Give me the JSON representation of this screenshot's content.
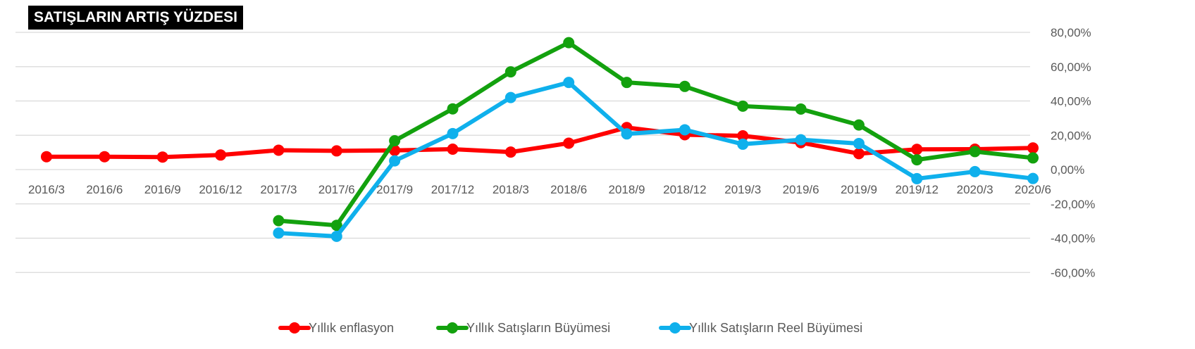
{
  "chart_data": {
    "type": "line",
    "title": "SATIŞLARIN ARTIŞ YÜZDESI",
    "categories": [
      "2016/3",
      "2016/6",
      "2016/9",
      "2016/12",
      "2017/3",
      "2017/6",
      "2017/9",
      "2017/12",
      "2018/3",
      "2018/6",
      "2018/9",
      "2018/12",
      "2019/3",
      "2019/6",
      "2019/9",
      "2019/12",
      "2020/3",
      "2020/6"
    ],
    "series": [
      {
        "name": "Yıllık enflasyon",
        "color": "#ff0000",
        "values": [
          7.5,
          7.5,
          7.3,
          8.5,
          11.3,
          10.9,
          11.2,
          11.9,
          10.2,
          15.4,
          24.5,
          20.3,
          19.7,
          15.7,
          9.3,
          11.8,
          11.9,
          12.6
        ]
      },
      {
        "name": "Yıllık Satışların Büyümesi",
        "color": "#13a10e",
        "values": [
          null,
          null,
          null,
          null,
          -29.8,
          -32.5,
          16.8,
          35.4,
          57.0,
          74.0,
          50.8,
          48.5,
          37.0,
          35.3,
          26.0,
          5.7,
          10.5,
          6.8
        ]
      },
      {
        "name": "Yıllık Satışların Reel Büyümesi",
        "color": "#0fb0ec",
        "values": [
          null,
          null,
          null,
          null,
          -37.0,
          -38.9,
          5.1,
          21.0,
          42.0,
          50.8,
          20.8,
          23.2,
          14.8,
          17.4,
          15.2,
          -5.3,
          -1.2,
          -5.2
        ]
      }
    ],
    "yticks": [
      "80,00%",
      "60,00%",
      "40,00%",
      "20,00%",
      "0,00%",
      "-20,00%",
      "-40,00%",
      "-60,00%"
    ],
    "ylim": [
      -60,
      80
    ],
    "grid": true,
    "legend": "bottom"
  }
}
